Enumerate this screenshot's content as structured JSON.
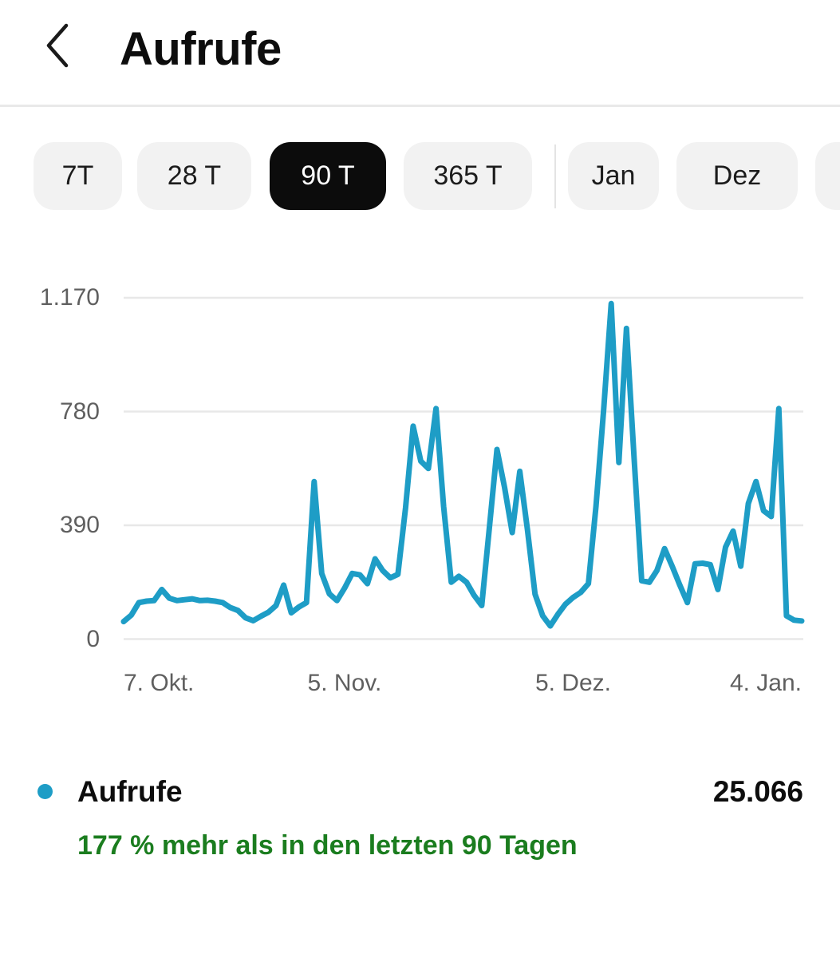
{
  "header": {
    "title": "Aufrufe"
  },
  "filters": {
    "items": [
      {
        "label": "7T",
        "active": false
      },
      {
        "label": "28 T",
        "active": false
      },
      {
        "label": "90 T",
        "active": true
      },
      {
        "label": "365 T",
        "active": false
      },
      {
        "label": "Jan",
        "active": false
      },
      {
        "label": "Dez",
        "active": false
      },
      {
        "label": "",
        "active": false
      }
    ]
  },
  "chart_data": {
    "type": "line",
    "series_name": "Aufrufe",
    "line_color": "#1e9dc6",
    "grid": true,
    "ylim": [
      0,
      1170
    ],
    "yticks": [
      {
        "value": 1170,
        "label": "1.170"
      },
      {
        "value": 780,
        "label": "780"
      },
      {
        "value": 390,
        "label": "390"
      },
      {
        "value": 0,
        "label": "0"
      }
    ],
    "xticks": [
      {
        "label": "7. Okt.",
        "day": 0
      },
      {
        "label": "5. Nov.",
        "day": 29
      },
      {
        "label": "5. Dez.",
        "day": 59
      },
      {
        "label": "4. Jan.",
        "day": 89
      }
    ],
    "values": [
      60,
      82,
      125,
      130,
      132,
      170,
      140,
      132,
      135,
      138,
      132,
      133,
      130,
      125,
      108,
      98,
      73,
      63,
      78,
      92,
      115,
      185,
      90,
      110,
      125,
      540,
      225,
      155,
      132,
      175,
      225,
      220,
      190,
      275,
      235,
      210,
      222,
      450,
      730,
      610,
      585,
      790,
      455,
      195,
      215,
      195,
      150,
      115,
      380,
      650,
      520,
      365,
      575,
      375,
      154,
      80,
      45,
      85,
      120,
      143,
      160,
      190,
      455,
      785,
      1150,
      605,
      1065,
      620,
      200,
      195,
      235,
      310,
      250,
      185,
      125,
      258,
      260,
      255,
      170,
      315,
      370,
      250,
      465,
      540,
      440,
      420,
      790,
      80,
      65,
      62
    ]
  },
  "legend": {
    "name": "Aufrufe",
    "value": "25.066",
    "delta_text": "177 % mehr als in den letzten 90 Tagen",
    "dot_color": "#1e9dc6",
    "delta_color": "#1b7d1f"
  }
}
